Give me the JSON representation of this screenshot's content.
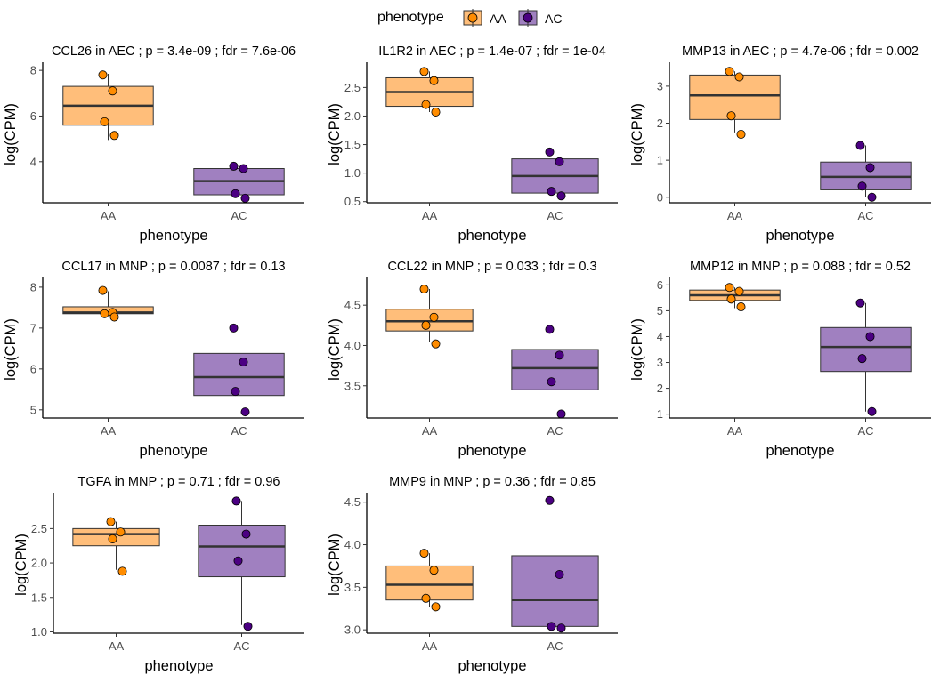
{
  "legend": {
    "title": "phenotype",
    "items": [
      {
        "label": "AA",
        "fill": "#FFBE7A",
        "point": "#FF8C00"
      },
      {
        "label": "AC",
        "fill": "#A080C0",
        "point": "#4B0082"
      }
    ]
  },
  "chart_data": [
    {
      "type": "boxplot",
      "title": "CCL26 in AEC ; p = 3.4e-09 ; fdr = 7.6e-06",
      "xlabel": "phenotype",
      "ylabel": "log(CPM)",
      "categories": [
        "AA",
        "AC"
      ],
      "ylim": [
        2.2,
        8.2
      ],
      "yticks": [
        4,
        6,
        8
      ],
      "boxes": [
        {
          "group": "AA",
          "min": 4.95,
          "q1": 5.6,
          "median": 6.45,
          "q3": 7.3,
          "max": 7.85,
          "points": [
            7.8,
            7.1,
            5.75,
            5.15
          ]
        },
        {
          "group": "AC",
          "min": 2.45,
          "q1": 2.55,
          "median": 3.15,
          "q3": 3.7,
          "max": 3.8,
          "points": [
            3.8,
            3.7,
            2.6,
            2.4
          ]
        }
      ]
    },
    {
      "type": "boxplot",
      "title": "IL1R2 in AEC ; p = 1.4e-07 ; fdr = 1e-04",
      "xlabel": "phenotype",
      "ylabel": "log(CPM)",
      "categories": [
        "AA",
        "AC"
      ],
      "ylim": [
        0.48,
        2.88
      ],
      "yticks": [
        0.5,
        1.0,
        1.5,
        2.0,
        2.5
      ],
      "boxes": [
        {
          "group": "AA",
          "min": 2.07,
          "q1": 2.17,
          "median": 2.42,
          "q3": 2.67,
          "max": 2.78,
          "points": [
            2.78,
            2.62,
            2.2,
            2.07
          ]
        },
        {
          "group": "AC",
          "min": 0.6,
          "q1": 0.65,
          "median": 0.95,
          "q3": 1.25,
          "max": 1.37,
          "points": [
            1.37,
            1.2,
            0.68,
            0.6
          ]
        }
      ]
    },
    {
      "type": "boxplot",
      "title": "MMP13 in AEC ; p = 4.7e-06 ; fdr = 0.002",
      "xlabel": "phenotype",
      "ylabel": "log(CPM)",
      "categories": [
        "AA",
        "AC"
      ],
      "ylim": [
        -0.15,
        3.55
      ],
      "yticks": [
        0,
        1,
        2,
        3
      ],
      "boxes": [
        {
          "group": "AA",
          "min": 1.75,
          "q1": 2.1,
          "median": 2.75,
          "q3": 3.3,
          "max": 3.4,
          "points": [
            3.4,
            3.25,
            2.2,
            1.7
          ]
        },
        {
          "group": "AC",
          "min": 0.0,
          "q1": 0.2,
          "median": 0.55,
          "q3": 0.95,
          "max": 1.4,
          "points": [
            1.4,
            0.8,
            0.3,
            0.0
          ]
        }
      ]
    },
    {
      "type": "boxplot",
      "title": "CCL17 in MNP ; p = 0.0087 ; fdr = 0.13",
      "xlabel": "phenotype",
      "ylabel": "log(CPM)",
      "categories": [
        "AA",
        "AC"
      ],
      "ylim": [
        4.8,
        8.15
      ],
      "yticks": [
        5,
        6,
        7,
        8
      ],
      "boxes": [
        {
          "group": "AA",
          "min": 7.3,
          "q1": 7.35,
          "median": 7.38,
          "q3": 7.52,
          "max": 7.9,
          "points": [
            7.92,
            7.38,
            7.35,
            7.27
          ]
        },
        {
          "group": "AC",
          "min": 4.95,
          "q1": 5.35,
          "median": 5.8,
          "q3": 6.38,
          "max": 7.0,
          "points": [
            7.0,
            6.17,
            5.45,
            4.95
          ]
        }
      ]
    },
    {
      "type": "boxplot",
      "title": "CCL22 in MNP ; p = 0.033 ; fdr = 0.3",
      "xlabel": "phenotype",
      "ylabel": "log(CPM)",
      "categories": [
        "AA",
        "AC"
      ],
      "ylim": [
        3.1,
        4.8
      ],
      "yticks": [
        3.5,
        4.0,
        4.5
      ],
      "boxes": [
        {
          "group": "AA",
          "min": 4.05,
          "q1": 4.18,
          "median": 4.3,
          "q3": 4.45,
          "max": 4.7,
          "points": [
            4.7,
            4.35,
            4.25,
            4.02
          ]
        },
        {
          "group": "AC",
          "min": 3.15,
          "q1": 3.45,
          "median": 3.72,
          "q3": 3.95,
          "max": 4.2,
          "points": [
            4.2,
            3.88,
            3.55,
            3.15
          ]
        }
      ]
    },
    {
      "type": "boxplot",
      "title": "MMP12 in MNP ; p = 0.088 ; fdr = 0.52",
      "xlabel": "phenotype",
      "ylabel": "log(CPM)",
      "categories": [
        "AA",
        "AC"
      ],
      "ylim": [
        0.85,
        6.15
      ],
      "yticks": [
        1,
        2,
        3,
        4,
        5,
        6
      ],
      "boxes": [
        {
          "group": "AA",
          "min": 5.1,
          "q1": 5.4,
          "median": 5.6,
          "q3": 5.8,
          "max": 5.9,
          "points": [
            5.9,
            5.75,
            5.45,
            5.15
          ]
        },
        {
          "group": "AC",
          "min": 1.1,
          "q1": 2.65,
          "median": 3.6,
          "q3": 4.35,
          "max": 5.3,
          "points": [
            5.3,
            4.0,
            3.15,
            1.1
          ]
        }
      ]
    },
    {
      "type": "boxplot",
      "title": "TGFA in MNP ; p = 0.71 ; fdr = 0.96",
      "xlabel": "phenotype",
      "ylabel": "log(CPM)",
      "categories": [
        "AA",
        "AC"
      ],
      "ylim": [
        0.98,
        2.97
      ],
      "yticks": [
        1.0,
        1.5,
        2.0,
        2.5
      ],
      "boxes": [
        {
          "group": "AA",
          "min": 1.9,
          "q1": 2.25,
          "median": 2.42,
          "q3": 2.5,
          "max": 2.6,
          "points": [
            2.6,
            2.45,
            2.35,
            1.88
          ]
        },
        {
          "group": "AC",
          "min": 1.1,
          "q1": 1.8,
          "median": 2.24,
          "q3": 2.55,
          "max": 2.9,
          "points": [
            2.9,
            2.42,
            2.03,
            1.08
          ]
        }
      ]
    },
    {
      "type": "boxplot",
      "title": "MMP9 in MNP ; p = 0.36 ; fdr = 0.85",
      "xlabel": "phenotype",
      "ylabel": "log(CPM)",
      "categories": [
        "AA",
        "AC"
      ],
      "ylim": [
        2.96,
        4.57
      ],
      "yticks": [
        3.0,
        3.5,
        4.0,
        4.5
      ],
      "boxes": [
        {
          "group": "AA",
          "min": 3.27,
          "q1": 3.35,
          "median": 3.53,
          "q3": 3.75,
          "max": 3.9,
          "points": [
            3.9,
            3.7,
            3.37,
            3.27
          ]
        },
        {
          "group": "AC",
          "min": 3.02,
          "q1": 3.04,
          "median": 3.35,
          "q3": 3.87,
          "max": 4.52,
          "points": [
            4.52,
            3.65,
            3.04,
            3.02
          ]
        }
      ]
    }
  ]
}
